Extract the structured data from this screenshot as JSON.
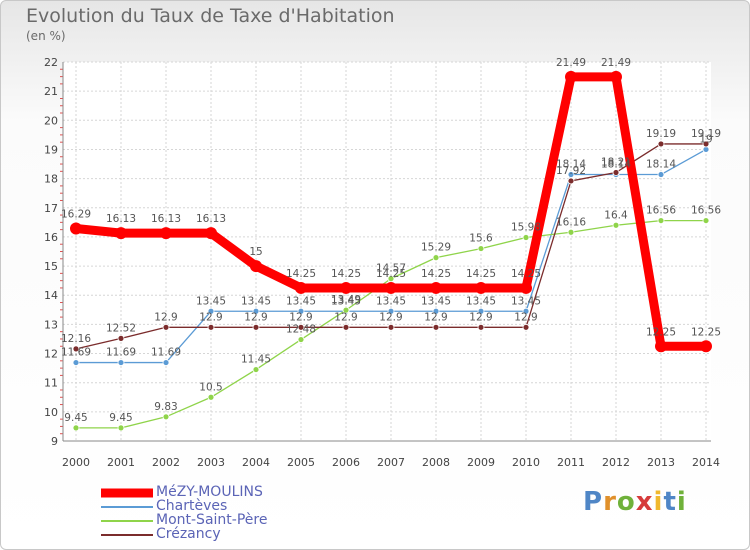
{
  "title": "Evolution du Taux de Taxe d'Habitation",
  "unit": "(en %)",
  "logo": {
    "text": "Proxiti",
    "letters": [
      "P",
      "r",
      "o",
      "x",
      "i",
      "t",
      "i"
    ],
    "colors": [
      "#4f86c6",
      "#e0902b",
      "#6fb13a",
      "#d63b3b",
      "#f0b82d",
      "#4f86c6",
      "#6fb13a"
    ]
  },
  "chart_data": {
    "type": "line",
    "title": "Evolution du Taux de Taxe d'Habitation",
    "xlabel": "",
    "ylabel": "(en %)",
    "x": [
      "2000",
      "2001",
      "2002",
      "2003",
      "2004",
      "2005",
      "2006",
      "2007",
      "2008",
      "2009",
      "2010",
      "2011",
      "2012",
      "2013",
      "2014"
    ],
    "ylim": [
      9,
      22
    ],
    "yticks": [
      "9",
      "10",
      "11",
      "12",
      "13",
      "14",
      "15",
      "16",
      "17",
      "18",
      "19",
      "20",
      "21",
      "22"
    ],
    "grid": true,
    "legend_position": "bottom-left",
    "series": [
      {
        "name": "MéZY-MOULINS",
        "color": "#ff0000",
        "values": [
          16.29,
          16.13,
          16.13,
          16.13,
          15,
          14.25,
          14.25,
          14.25,
          14.25,
          14.25,
          14.25,
          21.49,
          21.49,
          12.25,
          12.25
        ],
        "labels": [
          "16.29",
          "16.13",
          "16.13",
          "16.13",
          "15",
          "14.25",
          "14.25",
          "14.25",
          "14.25",
          "14.25",
          "14.25",
          "21.49",
          "21.49",
          "12.25",
          "12.25"
        ]
      },
      {
        "name": "Chartèves",
        "color": "#5b9bd5",
        "values": [
          11.69,
          11.69,
          11.69,
          13.45,
          13.45,
          13.45,
          13.45,
          13.45,
          13.45,
          13.45,
          13.45,
          18.14,
          18.14,
          18.14,
          19
        ],
        "labels": [
          "11.69",
          "11.69",
          "11.69",
          "13.45",
          "13.45",
          "13.45",
          "13.45",
          "13.45",
          "13.45",
          "13.45",
          "13.45",
          "18.14",
          "18.14",
          "18.14",
          "19"
        ]
      },
      {
        "name": "Mont-Saint-Père",
        "color": "#8fd44a",
        "values": [
          9.45,
          9.45,
          9.83,
          10.5,
          11.45,
          12.48,
          13.49,
          14.57,
          15.29,
          15.6,
          15.98,
          16.16,
          16.4,
          16.56,
          16.56
        ],
        "labels": [
          "9.45",
          "9.45",
          "9.83",
          "10.5",
          "11.45",
          "12.48",
          "13.49",
          "14.57",
          "15.29",
          "15.6",
          "15.98",
          "16.16",
          "16.4",
          "16.56",
          "16.56"
        ]
      },
      {
        "name": "Crézancy",
        "color": "#7b2c2c",
        "values": [
          12.16,
          12.52,
          12.9,
          12.9,
          12.9,
          12.9,
          12.9,
          12.9,
          12.9,
          12.9,
          12.9,
          17.92,
          18.21,
          19.19,
          19.19
        ],
        "labels": [
          "12.16",
          "12.52",
          "12.9",
          "12.9",
          "12.9",
          "12.9",
          "12.9",
          "12.9",
          "12.9",
          "12.9",
          "12.9",
          "17.92",
          "18.21",
          "19.19",
          "19.19"
        ]
      }
    ]
  }
}
